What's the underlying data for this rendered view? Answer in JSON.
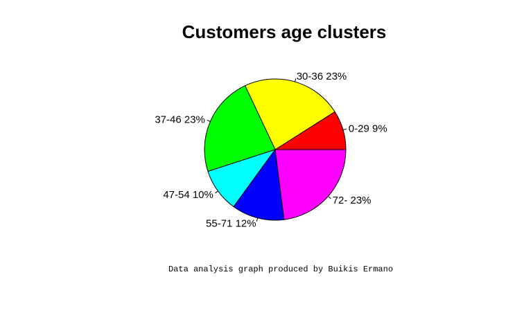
{
  "chart_data": {
    "type": "pie",
    "title": "Customers age clusters",
    "caption": "Data analysis graph produced by Buikis Ermano",
    "slices": [
      {
        "label": "0-29",
        "percent_label": "9%",
        "value": 9,
        "color": "#ff0000"
      },
      {
        "label": "30-36",
        "percent_label": "23%",
        "value": 23,
        "color": "#ffff00"
      },
      {
        "label": "37-46",
        "percent_label": "23%",
        "value": 23,
        "color": "#00ff00"
      },
      {
        "label": "47-54",
        "percent_label": "10%",
        "value": 10,
        "color": "#00ffff"
      },
      {
        "label": "55-71",
        "percent_label": "12%",
        "value": 12,
        "color": "#0000ff"
      },
      {
        "label": "72-",
        "percent_label": "23%",
        "value": 23,
        "color": "#ff00ff"
      }
    ],
    "direction": "counterclockwise",
    "start": "3 o'clock"
  }
}
